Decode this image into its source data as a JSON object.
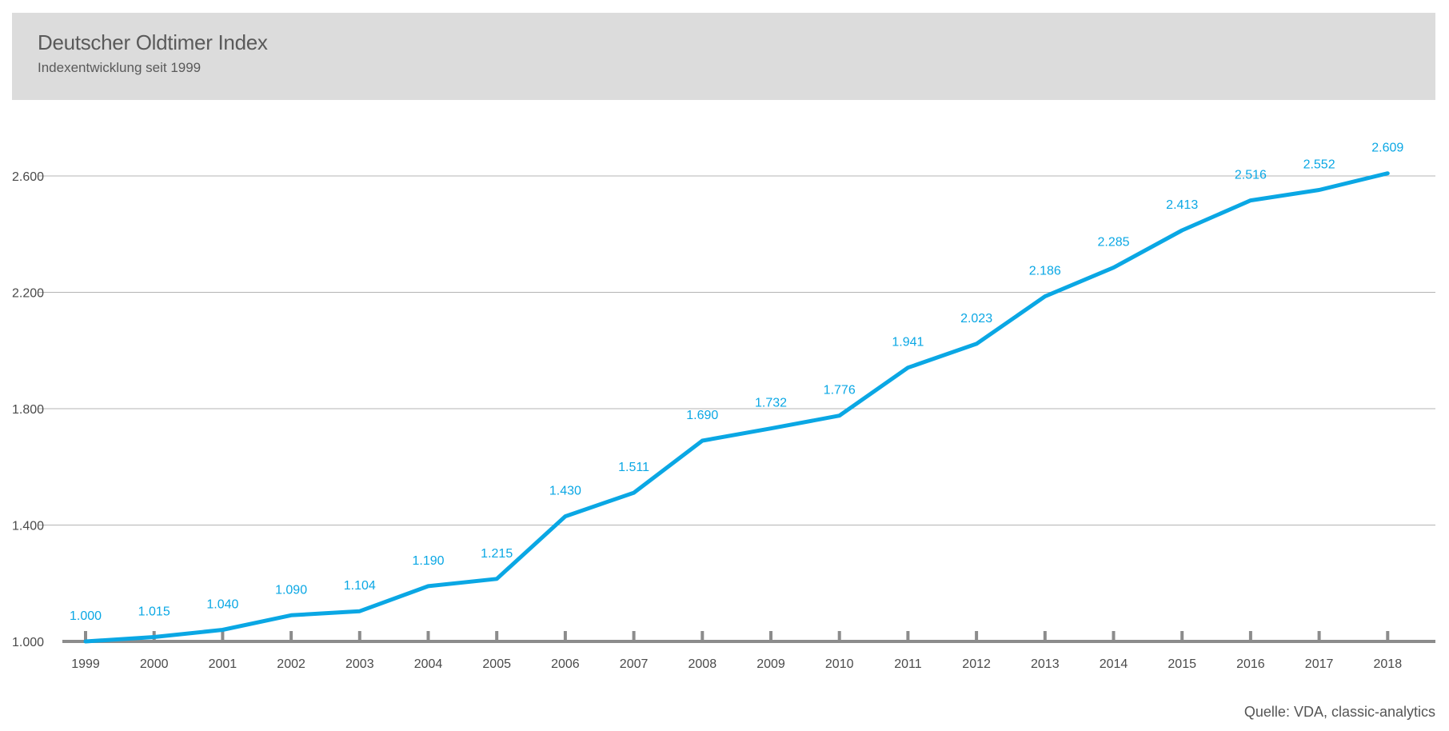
{
  "header": {
    "title": "Deutscher Oldtimer Index",
    "subtitle": "Indexentwicklung seit 1999"
  },
  "source": "Quelle: VDA, classic-analytics",
  "colors": {
    "line": "#0aa7e4",
    "label": "#0aa7e4",
    "grid": "#b4b4b4",
    "baseline": "#8c8c8c",
    "axis_text": "#4a4a4a",
    "header_bg": "#dcdcdc"
  },
  "chart_data": {
    "type": "line",
    "title": "Deutscher Oldtimer Index",
    "subtitle": "Indexentwicklung seit 1999",
    "x": [
      "1999",
      "2000",
      "2001",
      "2002",
      "2003",
      "2004",
      "2005",
      "2006",
      "2007",
      "2008",
      "2009",
      "2010",
      "2011",
      "2012",
      "2013",
      "2014",
      "2015",
      "2016",
      "2017",
      "2018"
    ],
    "values": [
      1000,
      1015,
      1040,
      1090,
      1104,
      1190,
      1215,
      1430,
      1511,
      1690,
      1732,
      1776,
      1941,
      2023,
      2186,
      2285,
      2413,
      2516,
      2552,
      2609
    ],
    "data_labels": [
      "1.000",
      "1.015",
      "1.040",
      "1.090",
      "1.104",
      "1.190",
      "1.215",
      "1.430",
      "1.511",
      "1.690",
      "1.732",
      "1.776",
      "1.941",
      "2.023",
      "2.186",
      "2.285",
      "2.413",
      "2.516",
      "2.552",
      "2.609"
    ],
    "y_ticks": [
      1000,
      1400,
      1800,
      2200,
      2600
    ],
    "y_tick_labels": [
      "1.000",
      "1.400",
      "1.800",
      "2.200",
      "2.600"
    ],
    "ylim": [
      1000,
      2750
    ],
    "grid": true,
    "legend": "none"
  }
}
